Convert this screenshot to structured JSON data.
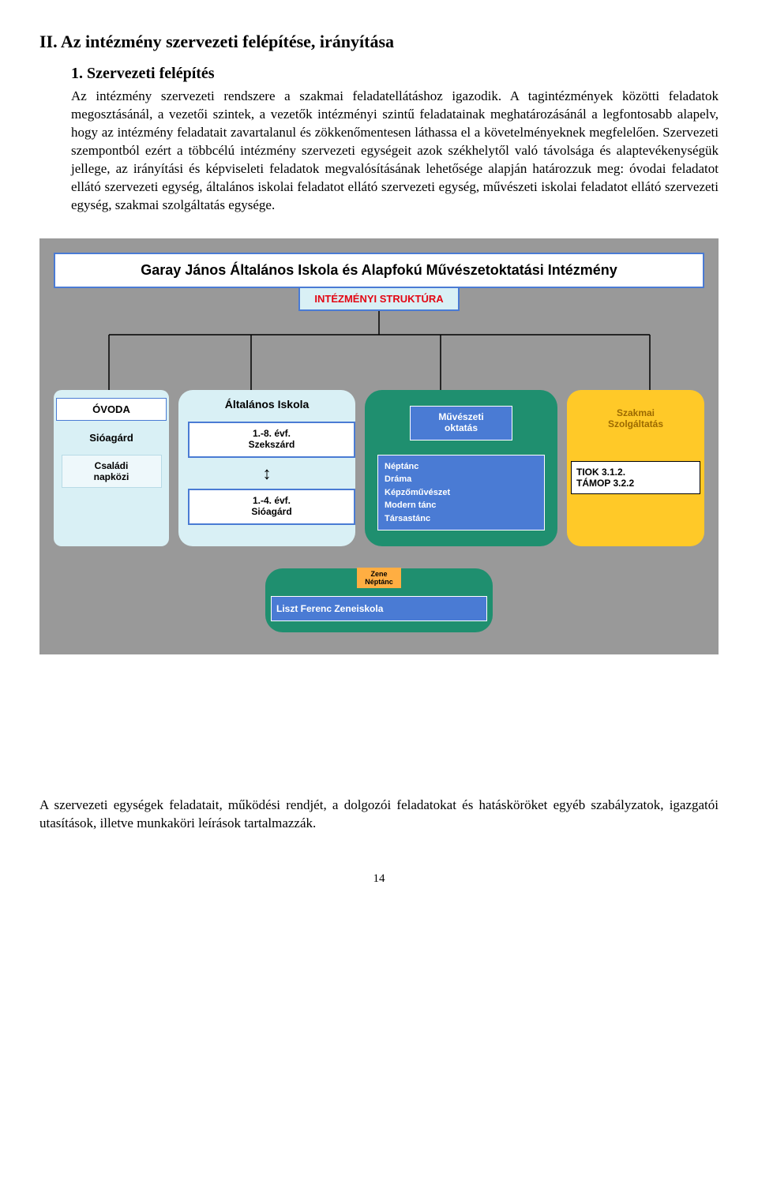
{
  "headingMain": "II.    Az intézmény szervezeti felépítése, irányítása",
  "headingSub": "1.   Szervezeti felépítés",
  "bodyText": "Az intézmény szervezeti rendszere a szakmai feladatellátáshoz igazodik. A tagintézmények közötti feladatok megosztásánál, a vezetői szintek, a vezetők intézményi szintű feladatainak meghatározásánál a legfontosabb alapelv, hogy az intézmény feladatait zavartalanul és zökkenőmentesen láthassa el a követelményeknek megfelelően. Szervezeti szempontból ezért a többcélú intézmény szervezeti egységeit azok székhelytől való távolsága és alaptevékenységük jellege, az irányítási és képviseleti feladatok megvalósításának lehetősége alapján határozzuk meg: óvodai feladatot ellátó szervezeti egység, általános iskolai feladatot ellátó szervezeti egység, művészeti iskolai feladatot ellátó szervezeti egység, szakmai szolgáltatás egysége.",
  "diagram": {
    "title": "Garay János Általános Iskola és Alapfokú Művészetoktatási Intézmény",
    "subtitle": "INTÉZMÉNYI STRUKTÚRA",
    "ovoda": {
      "header": "ÓVODA",
      "sub": "Sióagárd",
      "box": "Családi\nnapközi"
    },
    "iskola": {
      "header": "Általános Iskola",
      "box1": "1.-8. évf.\nSzekszárd",
      "box2": "1.-4. évf.\nSióagárd"
    },
    "muv": {
      "header": "Művészeti\noktatás",
      "list": "Néptánc\nDráma\nKépzőművészet\nModern tánc\nTársastánc"
    },
    "szak": {
      "header": "Szakmai\nSzolgáltatás",
      "box": "TIOK 3.1.2.\nTÁMOP 3.2.2"
    },
    "liszt": {
      "tag": "Zene\nNéptánc",
      "title": "Liszt Ferenc Zeneiskola"
    }
  },
  "closingText": "A szervezeti egységek feladatait, működési rendjét, a dolgozói feladatokat és hatásköröket egyéb szabályzatok, igazgatói utasítások, illetve munkaköri leírások tartalmazzák.",
  "pageNum": "14",
  "colors": {
    "gray": "#999999",
    "blueBorder": "#4a7bd4",
    "lightBlue": "#d9f0f5",
    "green": "#1f8f6f",
    "yellow": "#ffc928",
    "orange": "#ffae42",
    "red": "#e30613",
    "brownText": "#9c6a00"
  }
}
